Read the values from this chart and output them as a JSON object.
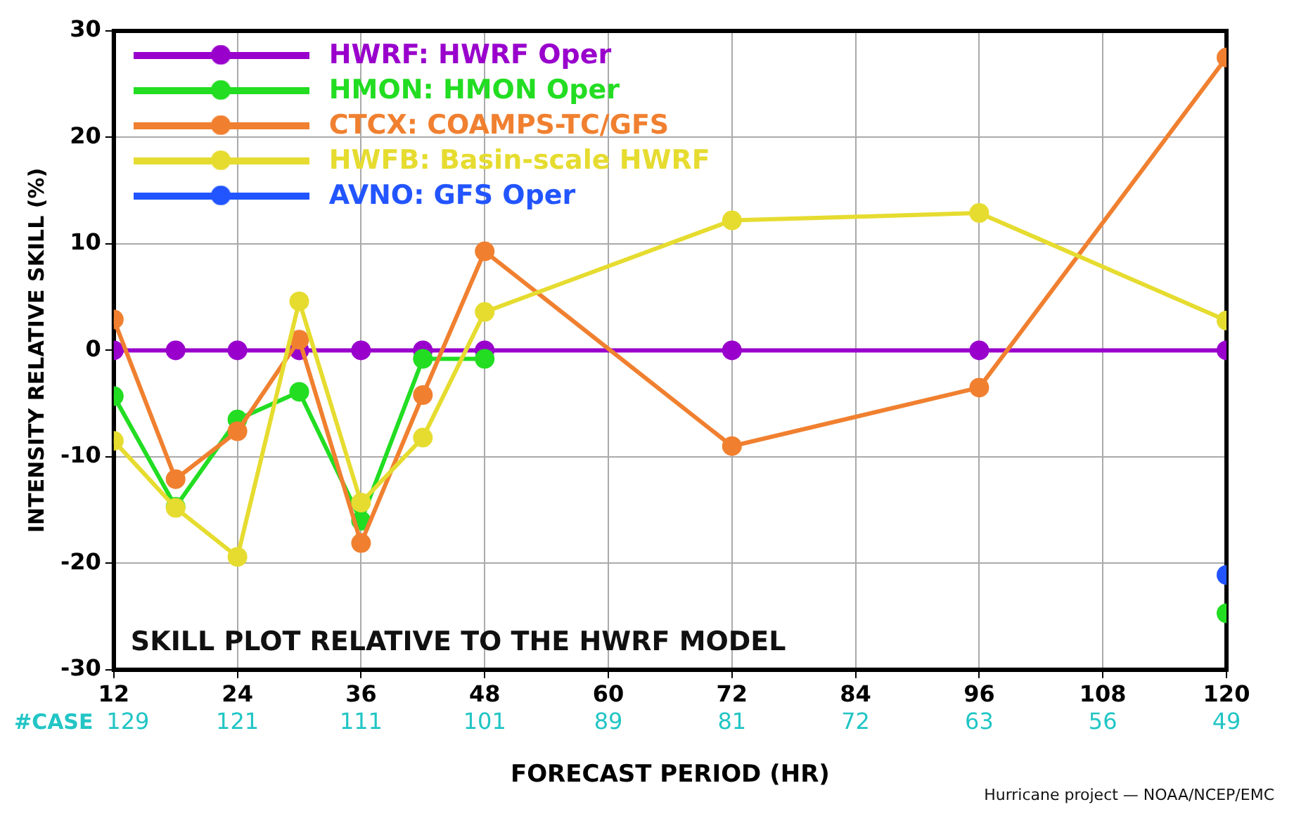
{
  "chart_data": {
    "type": "line",
    "xlabel": "FORECAST PERIOD (HR)",
    "ylabel": "INTENSITY RELATIVE SKILL (%)",
    "x": [
      12,
      18,
      24,
      30,
      36,
      42,
      48,
      72,
      96,
      120
    ],
    "series": [
      {
        "name": "HWRF: HWRF Oper",
        "color": "#9900cc",
        "values": [
          0,
          0,
          0,
          0,
          0,
          0,
          0,
          0,
          0,
          0
        ]
      },
      {
        "name": "HMON: HMON Oper",
        "color": "#22dd22",
        "values": [
          -4.3,
          -14.7,
          -6.5,
          -3.9,
          -16,
          -0.8,
          -0.8,
          null,
          null,
          -24.7
        ]
      },
      {
        "name": "CTCX: COAMPS-TC/GFS",
        "color": "#f08030",
        "values": [
          2.9,
          -12.1,
          -7.6,
          1.0,
          -18.1,
          -4.2,
          9.3,
          -9.0,
          -3.5,
          27.5
        ]
      },
      {
        "name": "HWFB: Basin-scale HWRF",
        "color": "#e6dc30",
        "values": [
          -8.5,
          -14.8,
          -19.4,
          4.6,
          -14.3,
          -8.2,
          3.6,
          12.2,
          12.9,
          2.8
        ]
      },
      {
        "name": "AVNO: GFS Oper",
        "color": "#2255ff",
        "values": [
          null,
          null,
          null,
          null,
          null,
          null,
          null,
          null,
          null,
          -21.1
        ]
      }
    ],
    "xlim": [
      12,
      120
    ],
    "xticks": [
      12,
      24,
      36,
      48,
      60,
      72,
      84,
      96,
      108,
      120
    ],
    "ylim": [
      -30,
      30
    ],
    "yticks": [
      -30,
      -20,
      -10,
      0,
      10,
      20,
      30
    ],
    "grid": true,
    "legend": "top left",
    "marker": "circle",
    "line_style": "solid",
    "annotations": [
      "SKILL PLOT RELATIVE TO THE HWRF MODEL",
      "#CASE",
      "129",
      "121",
      "111",
      "101",
      "89",
      "81",
      "72",
      "63",
      "56",
      "49",
      "Hurricane project — NOAA/NCEP/EMC"
    ]
  }
}
